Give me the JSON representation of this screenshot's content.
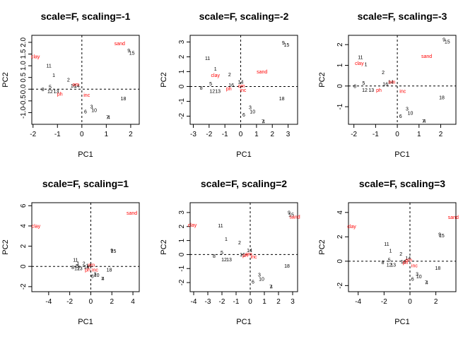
{
  "colors": {
    "sites": "#000000",
    "variables": "#ff0000"
  },
  "chart_data": [
    {
      "type": "scatter",
      "title": "scale=F, scaling=-1",
      "xlabel": "PC1",
      "ylabel": "PC2",
      "xlim": [
        -2.05,
        2.35
      ],
      "ylim": [
        -1.5,
        2.3
      ],
      "xticks": [
        -2,
        -1,
        0,
        1,
        2
      ],
      "xtick_labels": [
        "-2",
        "-1",
        "0",
        "1",
        "2"
      ],
      "yticks": [
        -1,
        -0.5,
        0,
        0.5,
        1,
        1.5,
        2
      ],
      "ytick_labels": [
        "-1.0",
        "-0.5",
        "0.0",
        "0.5",
        "1.0",
        "1.5",
        "2.0"
      ],
      "sites": [
        {
          "label": "15",
          "x": 2.05,
          "y": 1.55
        },
        {
          "label": "9",
          "x": 1.92,
          "y": 1.65
        },
        {
          "label": "11",
          "x": -1.35,
          "y": 1.0
        },
        {
          "label": "1",
          "x": -1.15,
          "y": 0.6
        },
        {
          "label": "2",
          "x": -0.55,
          "y": 0.4
        },
        {
          "label": "14",
          "x": -0.2,
          "y": 0.15
        },
        {
          "label": "5",
          "x": -1.3,
          "y": 0.1
        },
        {
          "label": "16",
          "x": -0.35,
          "y": 0.15
        },
        {
          "label": "8",
          "x": -1.6,
          "y": 0.0
        },
        {
          "label": "12",
          "x": -1.3,
          "y": -0.1
        },
        {
          "label": "13",
          "x": -1.05,
          "y": -0.1
        },
        {
          "label": "3",
          "x": 0.4,
          "y": -0.75
        },
        {
          "label": "10",
          "x": 0.5,
          "y": -0.9
        },
        {
          "label": "6",
          "x": 0.15,
          "y": -0.95
        },
        {
          "label": "18",
          "x": 1.7,
          "y": -0.4
        },
        {
          "label": "7",
          "x": 1.05,
          "y": -1.2
        },
        {
          "label": "4",
          "x": 1.1,
          "y": -1.2
        }
      ],
      "variables": [
        {
          "label": "sand",
          "x": 1.55,
          "y": 1.95
        },
        {
          "label": "clay",
          "x": -1.9,
          "y": 1.4
        },
        {
          "label": "ph",
          "x": -0.9,
          "y": -0.2
        },
        {
          "label": "inc",
          "x": 0.2,
          "y": -0.25
        },
        {
          "label": "om",
          "x": -0.25,
          "y": 0.2
        }
      ]
    },
    {
      "type": "scatter",
      "title": "scale=F, scaling=-2",
      "xlabel": "PC1",
      "ylabel": "PC2",
      "xlim": [
        -3.2,
        3.6
      ],
      "ylim": [
        -2.55,
        3.45
      ],
      "xticks": [
        -3,
        -2,
        -1,
        0,
        1,
        2,
        3
      ],
      "xtick_labels": [
        "-3",
        "-2",
        "-1",
        "0",
        "1",
        "2",
        "3"
      ],
      "yticks": [
        -2,
        -1,
        0,
        1,
        2,
        3
      ],
      "ytick_labels": [
        "-2",
        "-1",
        "0",
        "1",
        "2",
        "3"
      ],
      "sites": [
        {
          "label": "15",
          "x": 2.9,
          "y": 2.8
        },
        {
          "label": "9",
          "x": 2.7,
          "y": 2.95
        },
        {
          "label": "11",
          "x": -2.1,
          "y": 1.9
        },
        {
          "label": "1",
          "x": -1.6,
          "y": 1.2
        },
        {
          "label": "2",
          "x": -0.7,
          "y": 0.8
        },
        {
          "label": "14",
          "x": 0.0,
          "y": 0.3
        },
        {
          "label": "5",
          "x": -1.9,
          "y": 0.2
        },
        {
          "label": "16",
          "x": -0.6,
          "y": 0.1
        },
        {
          "label": "8",
          "x": -2.5,
          "y": -0.1
        },
        {
          "label": "12",
          "x": -1.8,
          "y": -0.3
        },
        {
          "label": "13",
          "x": -1.45,
          "y": -0.3
        },
        {
          "label": "3",
          "x": 0.6,
          "y": -1.4
        },
        {
          "label": "10",
          "x": 0.75,
          "y": -1.7
        },
        {
          "label": "6",
          "x": 0.2,
          "y": -1.9
        },
        {
          "label": "18",
          "x": 2.6,
          "y": -0.8
        },
        {
          "label": "7",
          "x": 1.4,
          "y": -2.35
        },
        {
          "label": "4",
          "x": 1.45,
          "y": -2.35
        }
      ],
      "variables": [
        {
          "label": "sand",
          "x": 1.35,
          "y": 1.0
        },
        {
          "label": "clay",
          "x": -1.6,
          "y": 0.75
        },
        {
          "label": "ph",
          "x": -0.75,
          "y": -0.15
        },
        {
          "label": "inc",
          "x": 0.15,
          "y": -0.25
        },
        {
          "label": "om",
          "x": 0.05,
          "y": 0.05
        }
      ]
    },
    {
      "type": "scatter",
      "title": "scale=F, scaling=-3",
      "xlabel": "PC1",
      "ylabel": "PC2",
      "xlim": [
        -2.25,
        2.7
      ],
      "ylim": [
        -1.85,
        2.45
      ],
      "xticks": [
        -2,
        -1,
        0,
        1,
        2
      ],
      "xtick_labels": [
        "-2",
        "-1",
        "0",
        "1",
        "2"
      ],
      "yticks": [
        -1,
        0,
        1,
        2
      ],
      "ytick_labels": [
        "-1",
        "0",
        "1",
        "2"
      ],
      "sites": [
        {
          "label": "15",
          "x": 2.3,
          "y": 2.15
        },
        {
          "label": "9",
          "x": 2.15,
          "y": 2.25
        },
        {
          "label": "11",
          "x": -1.7,
          "y": 1.4
        },
        {
          "label": "1",
          "x": -1.45,
          "y": 1.05
        },
        {
          "label": "2",
          "x": -0.65,
          "y": 0.65
        },
        {
          "label": "14",
          "x": -0.3,
          "y": 0.2
        },
        {
          "label": "5",
          "x": -1.55,
          "y": 0.15
        },
        {
          "label": "16",
          "x": -0.55,
          "y": 0.1
        },
        {
          "label": "8",
          "x": -1.95,
          "y": 0.0
        },
        {
          "label": "12",
          "x": -1.5,
          "y": -0.2
        },
        {
          "label": "13",
          "x": -1.2,
          "y": -0.2
        },
        {
          "label": "3",
          "x": 0.45,
          "y": -1.1
        },
        {
          "label": "10",
          "x": 0.6,
          "y": -1.3
        },
        {
          "label": "6",
          "x": 0.15,
          "y": -1.45
        },
        {
          "label": "18",
          "x": 2.05,
          "y": -0.55
        },
        {
          "label": "7",
          "x": 1.2,
          "y": -1.7
        },
        {
          "label": "4",
          "x": 1.25,
          "y": -1.7
        }
      ],
      "variables": [
        {
          "label": "sand",
          "x": 1.35,
          "y": 1.45
        },
        {
          "label": "clay",
          "x": -1.75,
          "y": 1.1
        },
        {
          "label": "ph",
          "x": -0.85,
          "y": -0.2
        },
        {
          "label": "inc",
          "x": 0.25,
          "y": -0.25
        },
        {
          "label": "om",
          "x": -0.25,
          "y": 0.2
        }
      ]
    },
    {
      "type": "scatter",
      "title": "scale=F, scaling=1",
      "xlabel": "PC1",
      "ylabel": "PC2",
      "xlim": [
        -5.6,
        4.6
      ],
      "ylim": [
        -2.5,
        6.3
      ],
      "xticks": [
        -4,
        -2,
        0,
        2,
        4
      ],
      "xtick_labels": [
        "-4",
        "-2",
        "0",
        "2",
        "4"
      ],
      "yticks": [
        -2,
        0,
        2,
        4,
        6
      ],
      "ytick_labels": [
        "-2",
        "0",
        "2",
        "4",
        "6"
      ],
      "sites": [
        {
          "label": "15",
          "x": 2.15,
          "y": 1.5
        },
        {
          "label": "9",
          "x": 2.0,
          "y": 1.6
        },
        {
          "label": "11",
          "x": -1.45,
          "y": 0.65
        },
        {
          "label": "1",
          "x": -1.2,
          "y": 0.3
        },
        {
          "label": "2",
          "x": -0.65,
          "y": 0.3
        },
        {
          "label": "14",
          "x": -0.2,
          "y": 0.1
        },
        {
          "label": "5",
          "x": -1.3,
          "y": 0.05
        },
        {
          "label": "16",
          "x": -0.4,
          "y": -0.05
        },
        {
          "label": "8",
          "x": -1.7,
          "y": -0.1
        },
        {
          "label": "12",
          "x": -1.3,
          "y": -0.2
        },
        {
          "label": "13",
          "x": -1.05,
          "y": -0.2
        },
        {
          "label": "3",
          "x": 0.4,
          "y": -0.75
        },
        {
          "label": "10",
          "x": 0.55,
          "y": -0.85
        },
        {
          "label": "6",
          "x": 0.15,
          "y": -0.95
        },
        {
          "label": "18",
          "x": 1.75,
          "y": -0.35
        },
        {
          "label": "7",
          "x": 1.1,
          "y": -1.2
        },
        {
          "label": "4",
          "x": 1.15,
          "y": -1.2
        }
      ],
      "variables": [
        {
          "label": "sand",
          "x": 3.9,
          "y": 5.3
        },
        {
          "label": "clay",
          "x": -5.2,
          "y": 4.0
        },
        {
          "label": "ph",
          "x": -0.3,
          "y": -0.35
        },
        {
          "label": "inc",
          "x": 0.4,
          "y": -0.35
        },
        {
          "label": "om",
          "x": 0.05,
          "y": 0.15
        }
      ]
    },
    {
      "type": "scatter",
      "title": "scale=F, scaling=2",
      "xlabel": "PC1",
      "ylabel": "PC2",
      "xlim": [
        -4.25,
        3.35
      ],
      "ylim": [
        -2.65,
        3.7
      ],
      "xticks": [
        -4,
        -3,
        -2,
        -1,
        0,
        1,
        2,
        3
      ],
      "xtick_labels": [
        "-4",
        "-3",
        "-2",
        "-1",
        "0",
        "1",
        "2",
        "3"
      ],
      "yticks": [
        -2,
        -1,
        0,
        1,
        2,
        3
      ],
      "ytick_labels": [
        "-2",
        "-1",
        "0",
        "1",
        "2",
        "3"
      ],
      "sites": [
        {
          "label": "15",
          "x": 2.9,
          "y": 2.85
        },
        {
          "label": "9",
          "x": 2.75,
          "y": 3.0
        },
        {
          "label": "11",
          "x": -2.1,
          "y": 2.05
        },
        {
          "label": "1",
          "x": -1.7,
          "y": 1.1
        },
        {
          "label": "2",
          "x": -0.75,
          "y": 0.85
        },
        {
          "label": "14",
          "x": -0.05,
          "y": 0.3
        },
        {
          "label": "5",
          "x": -2.0,
          "y": 0.15
        },
        {
          "label": "16",
          "x": -0.55,
          "y": 0.0
        },
        {
          "label": "8",
          "x": -2.55,
          "y": -0.1
        },
        {
          "label": "12",
          "x": -1.85,
          "y": -0.35
        },
        {
          "label": "13",
          "x": -1.5,
          "y": -0.35
        },
        {
          "label": "3",
          "x": 0.65,
          "y": -1.45
        },
        {
          "label": "10",
          "x": 0.8,
          "y": -1.75
        },
        {
          "label": "6",
          "x": 0.2,
          "y": -1.95
        },
        {
          "label": "18",
          "x": 2.6,
          "y": -0.8
        },
        {
          "label": "7",
          "x": 1.45,
          "y": -2.3
        },
        {
          "label": "4",
          "x": 1.5,
          "y": -2.3
        }
      ],
      "variables": [
        {
          "label": "sand",
          "x": 3.15,
          "y": 2.7
        },
        {
          "label": "clay",
          "x": -4.1,
          "y": 2.1
        },
        {
          "label": "ph",
          "x": -0.35,
          "y": -0.05
        },
        {
          "label": "inc",
          "x": 0.25,
          "y": -0.15
        },
        {
          "label": "om",
          "x": -0.1,
          "y": 0.05
        }
      ]
    },
    {
      "type": "scatter",
      "title": "scale=F, scaling=3",
      "xlabel": "PC1",
      "ylabel": "PC2",
      "xlim": [
        -4.75,
        3.55
      ],
      "ylim": [
        -2.5,
        4.8
      ],
      "xticks": [
        -4,
        -2,
        0,
        2
      ],
      "xtick_labels": [
        "-4",
        "-2",
        "0",
        "2"
      ],
      "yticks": [
        -2,
        0,
        2,
        4
      ],
      "ytick_labels": [
        "-2",
        "0",
        "2",
        "4"
      ],
      "sites": [
        {
          "label": "15",
          "x": 2.45,
          "y": 2.1
        },
        {
          "label": "9",
          "x": 2.3,
          "y": 2.2
        },
        {
          "label": "11",
          "x": -1.8,
          "y": 1.4
        },
        {
          "label": "1",
          "x": -1.5,
          "y": 0.85
        },
        {
          "label": "2",
          "x": -0.7,
          "y": 0.6
        },
        {
          "label": "14",
          "x": -0.15,
          "y": 0.25
        },
        {
          "label": "5",
          "x": -1.6,
          "y": 0.1
        },
        {
          "label": "16",
          "x": -0.5,
          "y": -0.05
        },
        {
          "label": "8",
          "x": -2.1,
          "y": -0.1
        },
        {
          "label": "12",
          "x": -1.6,
          "y": -0.3
        },
        {
          "label": "13",
          "x": -1.3,
          "y": -0.3
        },
        {
          "label": "3",
          "x": 0.55,
          "y": -1.05
        },
        {
          "label": "10",
          "x": 0.7,
          "y": -1.25
        },
        {
          "label": "6",
          "x": 0.2,
          "y": -1.45
        },
        {
          "label": "18",
          "x": 2.15,
          "y": -0.55
        },
        {
          "label": "7",
          "x": 1.25,
          "y": -1.75
        },
        {
          "label": "4",
          "x": 1.3,
          "y": -1.75
        }
      ],
      "variables": [
        {
          "label": "sand",
          "x": 3.35,
          "y": 3.6
        },
        {
          "label": "clay",
          "x": -4.5,
          "y": 2.85
        },
        {
          "label": "ph",
          "x": -0.35,
          "y": -0.1
        },
        {
          "label": "inc",
          "x": 0.35,
          "y": -0.35
        },
        {
          "label": "om",
          "x": -0.1,
          "y": 0.1
        }
      ]
    }
  ]
}
